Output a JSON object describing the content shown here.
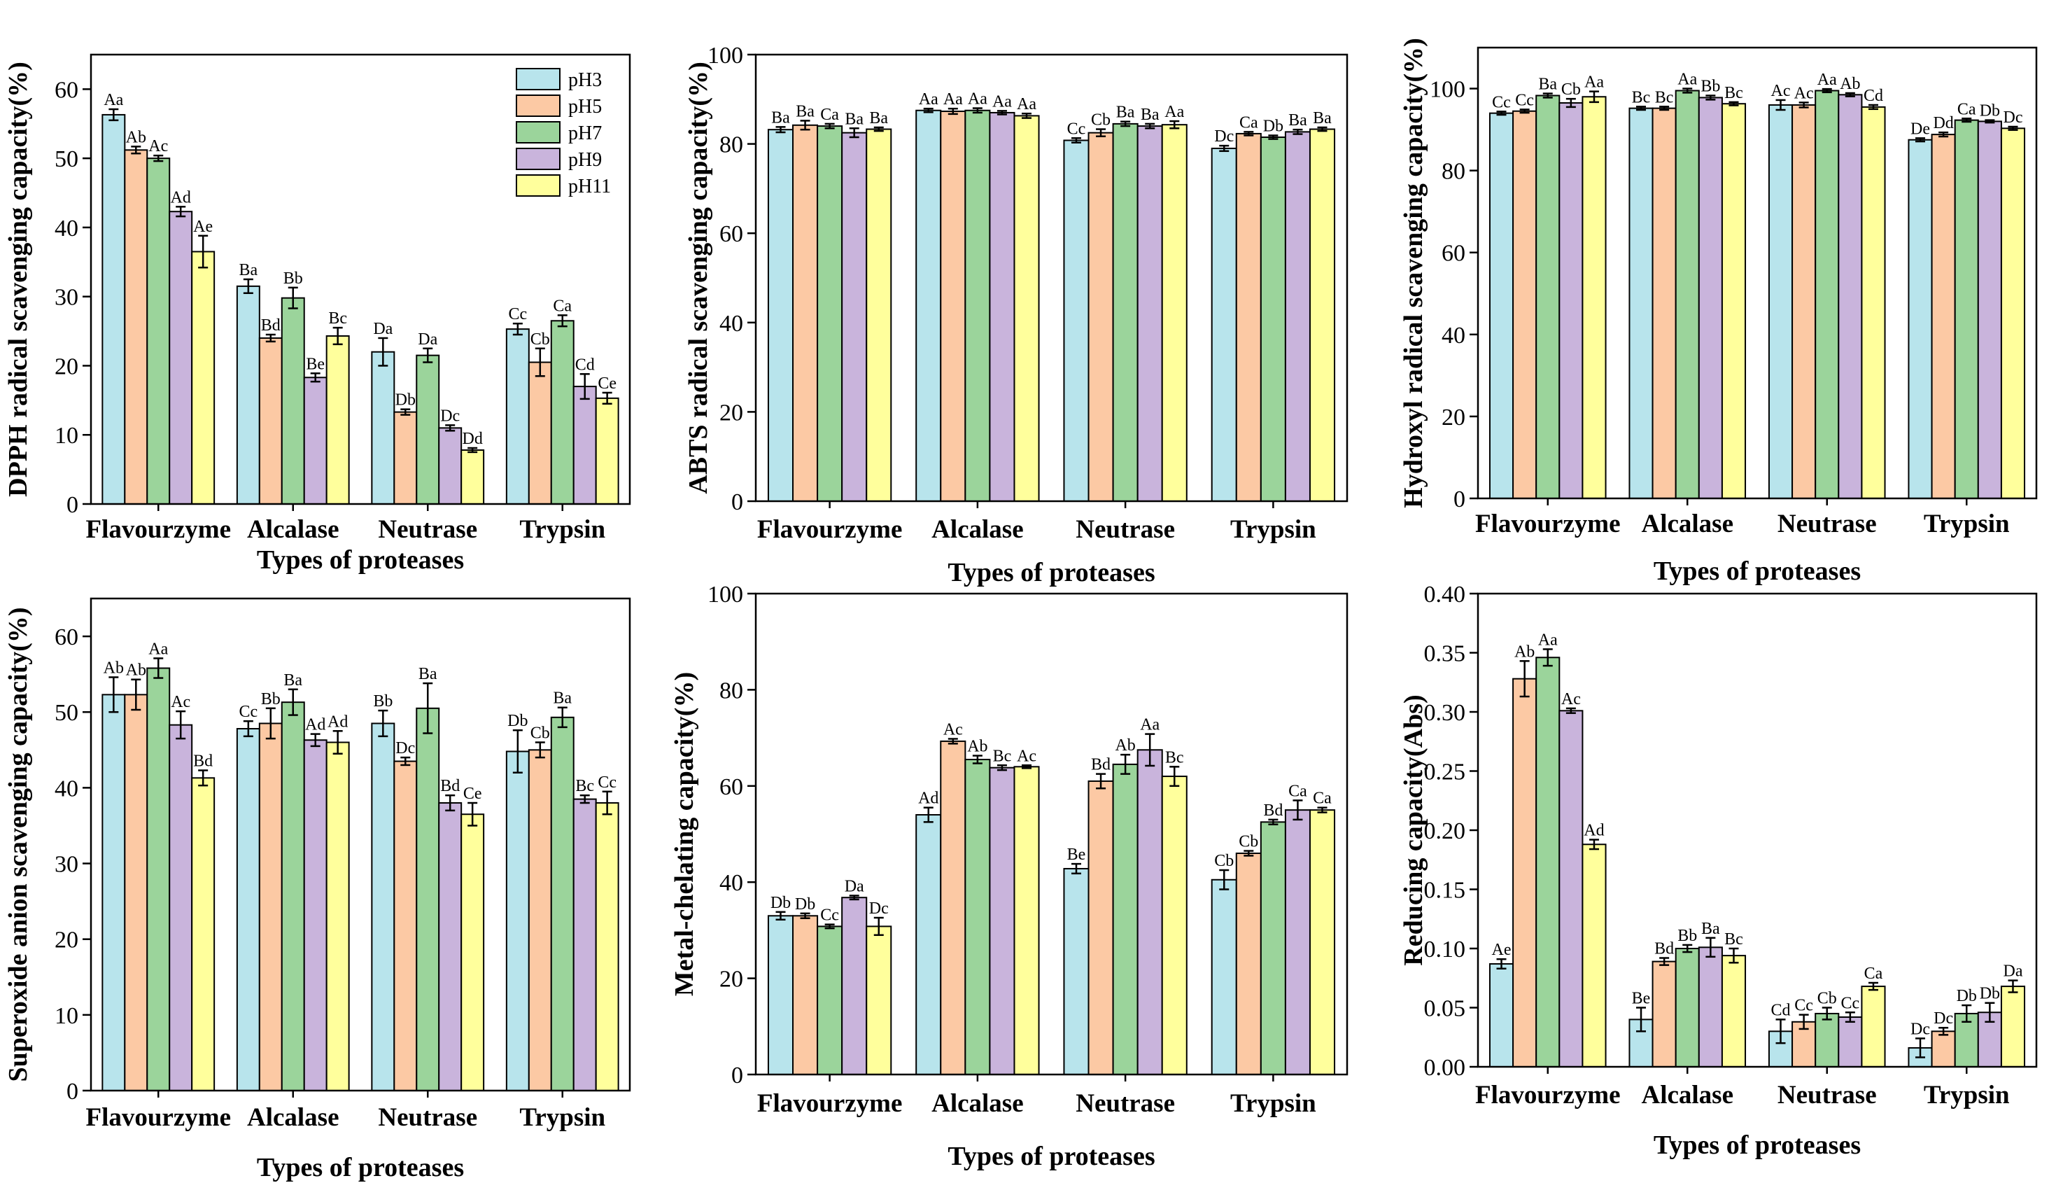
{
  "colors": {
    "pH3": "#b8e4ec",
    "pH5": "#fcc9a4",
    "pH7": "#9bd49b",
    "pH9": "#c9b4dc",
    "pH11": "#ffff9c"
  },
  "chart_data": [
    {
      "type": "bar",
      "title": "",
      "xlabel": "Types of proteases",
      "ylabel": "DPPH radical scavenging capacity(%)",
      "ylim": [
        0,
        65
      ],
      "yticks": [
        "0",
        "10",
        "20",
        "30",
        "40",
        "50",
        "60"
      ],
      "ytick_values": [
        0,
        10,
        20,
        30,
        40,
        50,
        60
      ],
      "categories": [
        "Flavourzyme",
        "Alcalase",
        "Neutrase",
        "Trypsin"
      ],
      "legend": {
        "position": "top-right",
        "entries": [
          "pH3",
          "pH5",
          "pH7",
          "pH9",
          "pH11"
        ]
      },
      "series": [
        {
          "name": "pH3",
          "values": [
            56.3,
            31.5,
            22.0,
            25.3
          ],
          "errors": [
            0.8,
            1.0,
            2.0,
            0.8
          ],
          "labels": [
            "Aa",
            "Ba",
            "Da",
            "Cc"
          ]
        },
        {
          "name": "pH5",
          "values": [
            51.2,
            24.0,
            13.3,
            20.5
          ],
          "errors": [
            0.5,
            0.5,
            0.4,
            2.0
          ],
          "labels": [
            "Ab",
            "Bd",
            "Db",
            "Cb"
          ]
        },
        {
          "name": "pH7",
          "values": [
            50.0,
            29.8,
            21.5,
            26.5
          ],
          "errors": [
            0.4,
            1.5,
            1.0,
            0.8
          ],
          "labels": [
            "Ac",
            "Bb",
            "Da",
            "Ca"
          ]
        },
        {
          "name": "pH9",
          "values": [
            42.3,
            18.3,
            11.0,
            17.0
          ],
          "errors": [
            0.7,
            0.6,
            0.4,
            1.8
          ],
          "labels": [
            "Ad",
            "Be",
            "Dc",
            "Cd"
          ]
        },
        {
          "name": "pH11",
          "values": [
            36.5,
            24.3,
            7.8,
            15.3
          ],
          "errors": [
            2.3,
            1.2,
            0.3,
            0.8
          ],
          "labels": [
            "Ae",
            "Bc",
            "Dd",
            "Ce"
          ]
        }
      ]
    },
    {
      "type": "bar",
      "title": "",
      "xlabel": "Types of proteases",
      "ylabel": "ABTS radical scavenging capacity(%)",
      "ylim": [
        0,
        100
      ],
      "yticks": [
        "0",
        "20",
        "40",
        "60",
        "80",
        "100"
      ],
      "ytick_values": [
        0,
        20,
        40,
        60,
        80,
        100
      ],
      "categories": [
        "Flavourzyme",
        "Alcalase",
        "Neutrase",
        "Trypsin"
      ],
      "series": [
        {
          "name": "pH3",
          "values": [
            83.2,
            87.5,
            80.8,
            79.0
          ],
          "errors": [
            0.6,
            0.4,
            0.5,
            0.6
          ],
          "labels": [
            "Ba",
            "Aa",
            "Cc",
            "Dc"
          ]
        },
        {
          "name": "pH5",
          "values": [
            84.2,
            87.3,
            82.5,
            82.3
          ],
          "errors": [
            1.0,
            0.6,
            0.8,
            0.4
          ],
          "labels": [
            "Ba",
            "Aa",
            "Cb",
            "Ca"
          ]
        },
        {
          "name": "pH7",
          "values": [
            84.0,
            87.5,
            84.5,
            81.5
          ],
          "errors": [
            0.5,
            0.5,
            0.5,
            0.4
          ],
          "labels": [
            "Ca",
            "Aa",
            "Ba",
            "Db"
          ]
        },
        {
          "name": "pH9",
          "values": [
            82.5,
            87.0,
            84.0,
            82.7
          ],
          "errors": [
            1.0,
            0.4,
            0.5,
            0.5
          ],
          "labels": [
            "Ba",
            "Aa",
            "Ba",
            "Ba"
          ]
        },
        {
          "name": "pH11",
          "values": [
            83.3,
            86.3,
            84.3,
            83.3
          ],
          "errors": [
            0.4,
            0.5,
            0.8,
            0.4
          ],
          "labels": [
            "Ba",
            "Aa",
            "Aa",
            "Ba"
          ]
        }
      ]
    },
    {
      "type": "bar",
      "title": "",
      "xlabel": "Types of proteases",
      "ylabel": "Hydroxyl radical scavenging capacity(%)",
      "ylim": [
        0,
        110
      ],
      "yticks": [
        "0",
        "20",
        "40",
        "60",
        "80",
        "100"
      ],
      "ytick_values": [
        0,
        20,
        40,
        60,
        80,
        100
      ],
      "categories": [
        "Flavourzyme",
        "Alcalase",
        "Neutrase",
        "Trypsin"
      ],
      "series": [
        {
          "name": "pH3",
          "values": [
            94.0,
            95.2,
            96.0,
            87.5
          ],
          "errors": [
            0.4,
            0.4,
            1.2,
            0.4
          ],
          "labels": [
            "Cc",
            "Bc",
            "Ac",
            "De"
          ]
        },
        {
          "name": "pH5",
          "values": [
            94.5,
            95.2,
            96.0,
            88.8
          ],
          "errors": [
            0.4,
            0.4,
            0.6,
            0.5
          ],
          "labels": [
            "Cc",
            "Bc",
            "Ac",
            "Dd"
          ]
        },
        {
          "name": "pH7",
          "values": [
            98.3,
            99.5,
            99.5,
            92.3
          ],
          "errors": [
            0.5,
            0.5,
            0.4,
            0.4
          ],
          "labels": [
            "Ba",
            "Aa",
            "Aa",
            "Ca"
          ]
        },
        {
          "name": "pH9",
          "values": [
            96.5,
            97.8,
            98.5,
            92.0
          ],
          "errors": [
            1.0,
            0.5,
            0.4,
            0.3
          ],
          "labels": [
            "Cb",
            "Bb",
            "Ab",
            "Db"
          ]
        },
        {
          "name": "pH11",
          "values": [
            98.0,
            96.3,
            95.5,
            90.3
          ],
          "errors": [
            1.3,
            0.4,
            0.5,
            0.4
          ],
          "labels": [
            "Aa",
            "Bc",
            "Cd",
            "Dc"
          ]
        }
      ]
    },
    {
      "type": "bar",
      "title": "",
      "xlabel": "Types of proteases",
      "ylabel": "Superoxide anion  scavenging capacity(%)",
      "ylim": [
        0,
        65
      ],
      "yticks": [
        "0",
        "10",
        "20",
        "30",
        "40",
        "50",
        "60"
      ],
      "ytick_values": [
        0,
        10,
        20,
        30,
        40,
        50,
        60
      ],
      "categories": [
        "Flavourzyme",
        "Alcalase",
        "Neutrase",
        "Trypsin"
      ],
      "series": [
        {
          "name": "pH3",
          "values": [
            52.3,
            47.8,
            48.5,
            44.8
          ],
          "errors": [
            2.3,
            1.0,
            1.7,
            2.8
          ],
          "labels": [
            "Ab",
            "Cc",
            "Bb",
            "Db"
          ]
        },
        {
          "name": "pH5",
          "values": [
            52.3,
            48.5,
            43.5,
            45.0
          ],
          "errors": [
            2.0,
            2.0,
            0.5,
            1.0
          ],
          "labels": [
            "Ab",
            "Bb",
            "Dc",
            "Cb"
          ]
        },
        {
          "name": "pH7",
          "values": [
            55.8,
            51.3,
            50.5,
            49.3
          ],
          "errors": [
            1.3,
            1.7,
            3.3,
            1.3
          ],
          "labels": [
            "Aa",
            "Ba",
            "Ba",
            "Ba"
          ]
        },
        {
          "name": "pH9",
          "values": [
            48.3,
            46.3,
            38.0,
            38.5
          ],
          "errors": [
            1.8,
            0.8,
            1.0,
            0.5
          ],
          "labels": [
            "Ac",
            "Ad",
            "Bd",
            "Bc"
          ]
        },
        {
          "name": "pH11",
          "values": [
            41.3,
            46.0,
            36.5,
            38.0
          ],
          "errors": [
            1.0,
            1.5,
            1.5,
            1.5
          ],
          "labels": [
            "Bd",
            "Ad",
            "Ce",
            "Cc"
          ]
        }
      ]
    },
    {
      "type": "bar",
      "title": "",
      "xlabel": "Types of proteases",
      "ylabel": "Metal-chelating capacity(%)",
      "ylim": [
        0,
        100
      ],
      "yticks": [
        "0",
        "20",
        "40",
        "60",
        "80",
        "100"
      ],
      "ytick_values": [
        0,
        20,
        40,
        60,
        80,
        100
      ],
      "categories": [
        "Flavourzyme",
        "Alcalase",
        "Neutrase",
        "Trypsin"
      ],
      "series": [
        {
          "name": "pH3",
          "values": [
            33.0,
            54.0,
            42.8,
            40.5
          ],
          "errors": [
            0.8,
            1.5,
            1.0,
            2.0
          ],
          "labels": [
            "Db",
            "Ad",
            "Be",
            "Cb"
          ]
        },
        {
          "name": "pH5",
          "values": [
            33.0,
            69.3,
            61.0,
            46.0
          ],
          "errors": [
            0.5,
            0.5,
            1.5,
            0.5
          ],
          "labels": [
            "Db",
            "Ac",
            "Bd",
            "Cb"
          ]
        },
        {
          "name": "pH7",
          "values": [
            30.8,
            65.5,
            64.5,
            52.5
          ],
          "errors": [
            0.4,
            0.8,
            2.0,
            0.5
          ],
          "labels": [
            "Cc",
            "Ab",
            "Ab",
            "Bd"
          ]
        },
        {
          "name": "pH9",
          "values": [
            36.8,
            63.8,
            67.5,
            55.0
          ],
          "errors": [
            0.4,
            0.5,
            3.3,
            2.0
          ],
          "labels": [
            "Da",
            "Bc",
            "Aa",
            "Ca"
          ]
        },
        {
          "name": "pH11",
          "values": [
            30.8,
            64.0,
            62.0,
            55.0
          ],
          "errors": [
            1.8,
            0.3,
            2.0,
            0.5
          ],
          "labels": [
            "Dc",
            "Ac",
            "Bc",
            "Ca"
          ]
        }
      ]
    },
    {
      "type": "bar",
      "title": "",
      "xlabel": "Types of proteases",
      "ylabel": "Reducing capacity(Abs)",
      "ylim": [
        0,
        0.4
      ],
      "yticks": [
        "0.00",
        "0.05",
        "0.10",
        "0.15",
        "0.20",
        "0.25",
        "0.30",
        "0.35",
        "0.40"
      ],
      "ytick_values": [
        0,
        0.05,
        0.1,
        0.15,
        0.2,
        0.25,
        0.3,
        0.35,
        0.4
      ],
      "categories": [
        "Flavourzyme",
        "Alcalase",
        "Neutrase",
        "Trypsin"
      ],
      "series": [
        {
          "name": "pH3",
          "values": [
            0.087,
            0.04,
            0.03,
            0.016
          ],
          "errors": [
            0.004,
            0.01,
            0.01,
            0.008
          ],
          "labels": [
            "Ae",
            "Be",
            "Cd",
            "Dc"
          ]
        },
        {
          "name": "pH5",
          "values": [
            0.328,
            0.089,
            0.038,
            0.03
          ],
          "errors": [
            0.015,
            0.003,
            0.006,
            0.003
          ],
          "labels": [
            "Ab",
            "Bd",
            "Cc",
            "Dc"
          ]
        },
        {
          "name": "pH7",
          "values": [
            0.346,
            0.1,
            0.045,
            0.045
          ],
          "errors": [
            0.007,
            0.003,
            0.005,
            0.007
          ],
          "labels": [
            "Aa",
            "Bb",
            "Cb",
            "Db"
          ]
        },
        {
          "name": "pH9",
          "values": [
            0.301,
            0.101,
            0.042,
            0.046
          ],
          "errors": [
            0.002,
            0.008,
            0.004,
            0.008
          ],
          "labels": [
            "Ac",
            "Ba",
            "Cc",
            "Db"
          ]
        },
        {
          "name": "pH11",
          "values": [
            0.188,
            0.094,
            0.068,
            0.068
          ],
          "errors": [
            0.004,
            0.006,
            0.003,
            0.005
          ],
          "labels": [
            "Ad",
            "Bc",
            "Ca",
            "Da"
          ]
        }
      ]
    }
  ]
}
